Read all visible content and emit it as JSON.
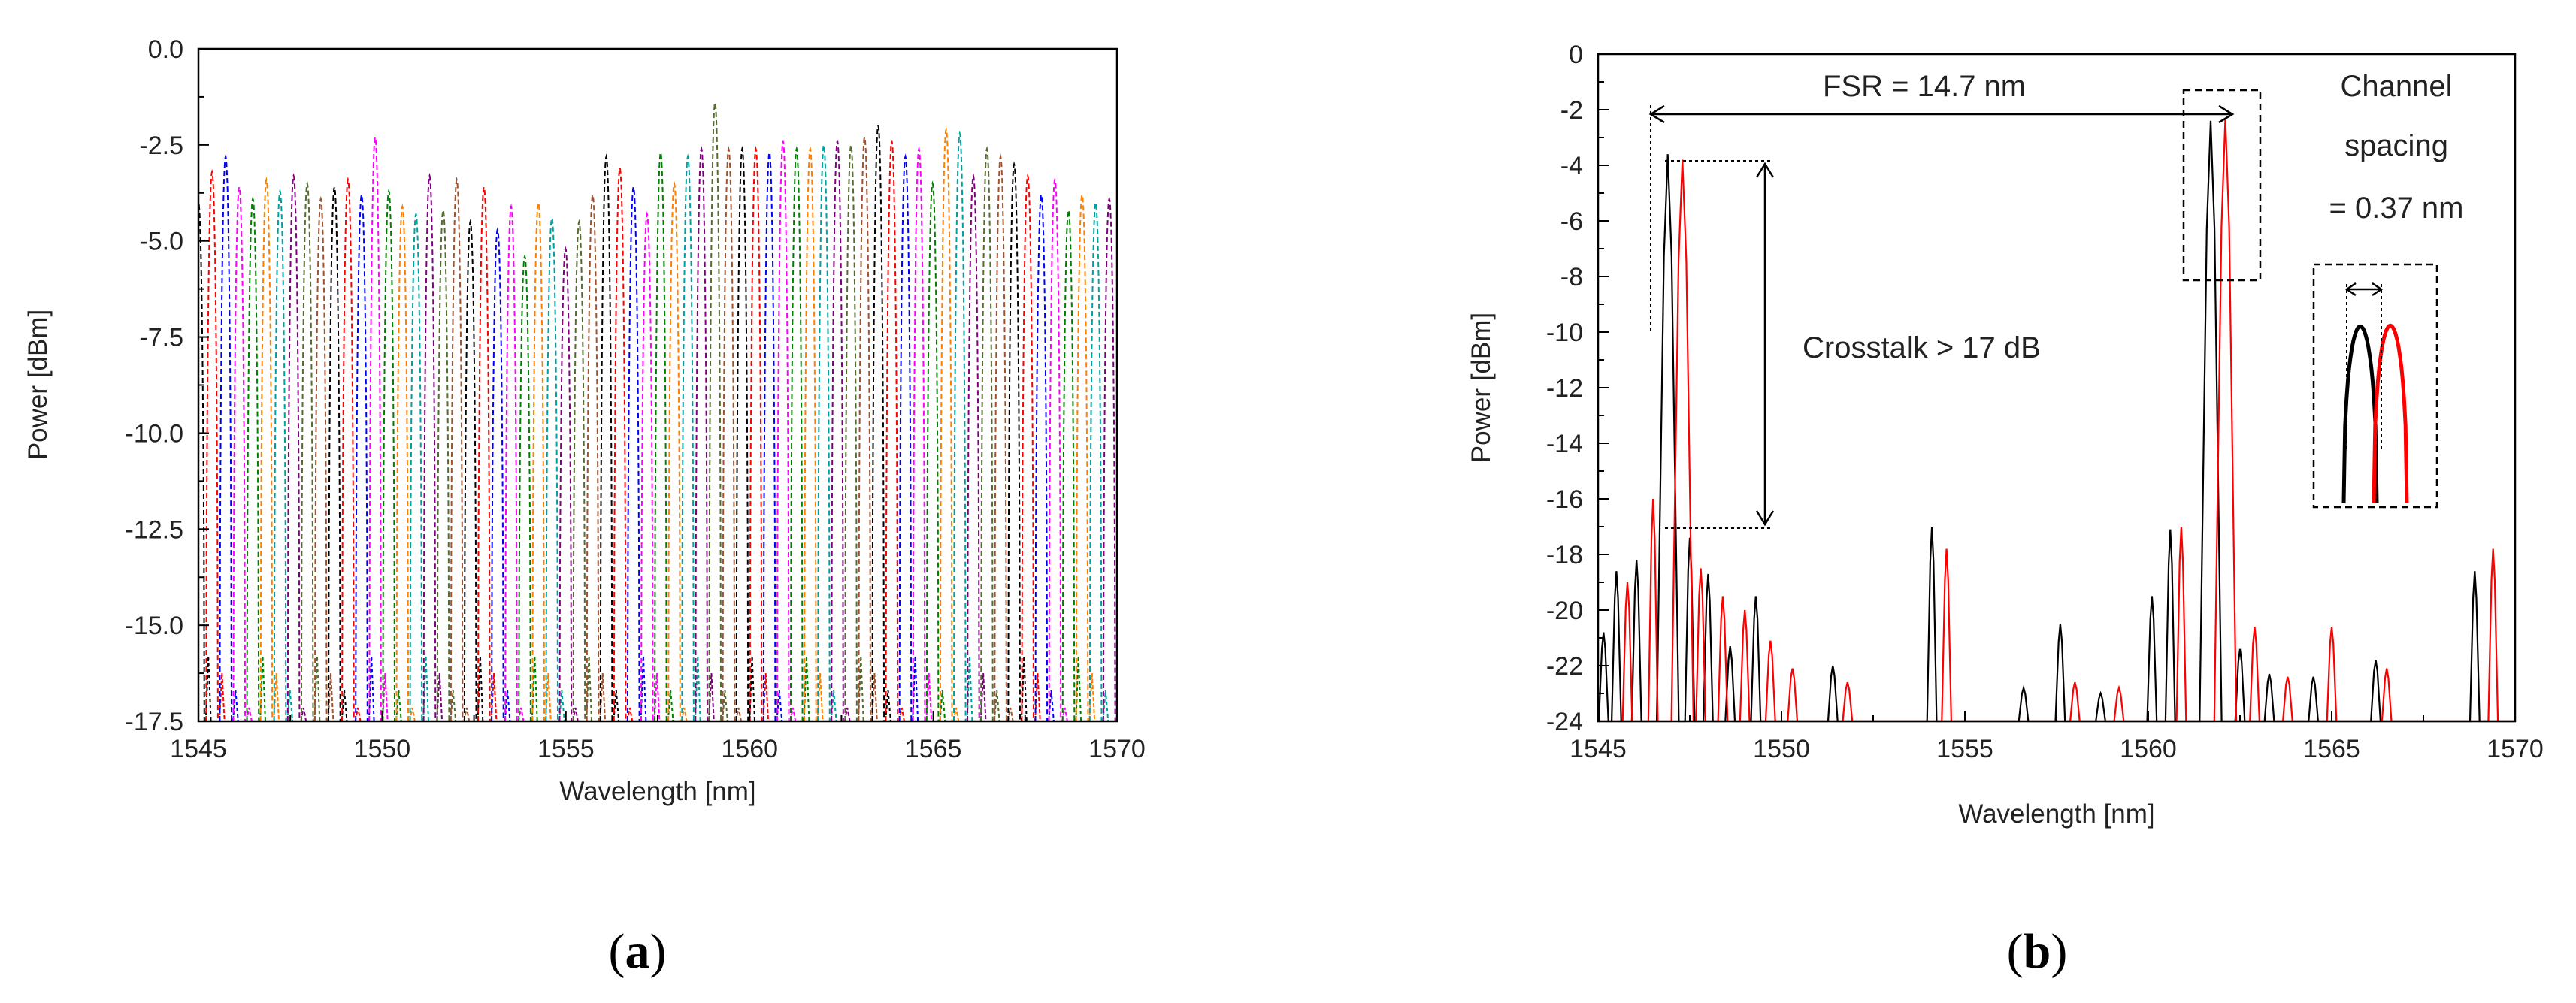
{
  "figure": {
    "panel_labels": [
      "a",
      "b"
    ]
  },
  "chart_data": [
    {
      "type": "line",
      "panel": "a",
      "title": "",
      "xlabel": "Wavelength [nm]",
      "ylabel": "Power [dBm]",
      "xlim": [
        1545,
        1570
      ],
      "ylim": [
        -17.5,
        0
      ],
      "x_ticks": [
        1545,
        1550,
        1555,
        1560,
        1565,
        1570
      ],
      "y_ticks": [
        0.0,
        -2.5,
        -5.0,
        -7.5,
        -10.0,
        -12.5,
        -15.0,
        -17.5
      ],
      "x_tick_labels": [
        "1545",
        "1550",
        "1555",
        "1560",
        "1565",
        "1570"
      ],
      "y_tick_labels": [
        "0.0",
        "-2.5",
        "-5.0",
        "-7.5",
        "-10.0",
        "-12.5",
        "-15.0",
        "-17.5"
      ],
      "grid": false,
      "line_style": "dashed",
      "colors": [
        "#000000",
        "#ff0000",
        "#0000ff",
        "#ff00ff",
        "#008000",
        "#ff8000",
        "#00a0a0",
        "#800080",
        "#556b2f",
        "#a0522d"
      ],
      "peak_wavelengths": [
        1545.0,
        1545.37,
        1545.74,
        1546.11,
        1546.48,
        1546.85,
        1547.22,
        1547.59,
        1547.96,
        1548.33,
        1548.7,
        1549.07,
        1549.44,
        1549.81,
        1550.18,
        1550.55,
        1550.92,
        1551.29,
        1551.66,
        1552.03,
        1552.4,
        1552.77,
        1553.14,
        1553.51,
        1553.88,
        1554.25,
        1554.62,
        1554.99,
        1555.36,
        1555.73,
        1556.1,
        1556.47,
        1556.84,
        1557.21,
        1557.58,
        1557.95,
        1558.32,
        1558.69,
        1559.06,
        1559.43,
        1559.8,
        1560.17,
        1560.54,
        1560.91,
        1561.28,
        1561.65,
        1562.02,
        1562.39,
        1562.76,
        1563.13,
        1563.5,
        1563.87,
        1564.24,
        1564.61,
        1564.98,
        1565.35,
        1565.72,
        1566.09,
        1566.46,
        1566.83,
        1567.2,
        1567.57,
        1567.94,
        1568.31,
        1568.68,
        1569.05,
        1569.42,
        1569.79
      ],
      "peak_powers": [
        -4.0,
        -3.2,
        -2.8,
        -3.6,
        -3.9,
        -3.4,
        -3.7,
        -3.3,
        -3.5,
        -3.9,
        -3.6,
        -3.4,
        -3.8,
        -2.3,
        -3.7,
        -4.1,
        -4.3,
        -3.3,
        -4.2,
        -3.4,
        -4.5,
        -3.6,
        -4.7,
        -4.1,
        -5.4,
        -4.0,
        -4.4,
        -5.2,
        -4.5,
        -3.8,
        -2.8,
        -3.1,
        -3.6,
        -4.3,
        -2.7,
        -3.5,
        -2.8,
        -2.6,
        -1.4,
        -2.6,
        -2.6,
        -2.6,
        -2.7,
        -2.4,
        -2.6,
        -2.6,
        -2.5,
        -2.4,
        -2.5,
        -2.3,
        -2.0,
        -2.4,
        -2.8,
        -2.6,
        -3.5,
        -2.1,
        -2.2,
        -3.3,
        -2.6,
        -2.8,
        -3.0,
        -3.3,
        -3.8,
        -3.4,
        -4.2,
        -3.8,
        -4.0,
        -3.9
      ]
    },
    {
      "type": "line",
      "panel": "b",
      "title": "",
      "xlabel": "Wavelength [nm]",
      "ylabel": "Power [dBm]",
      "xlim": [
        1545,
        1570
      ],
      "ylim": [
        -24,
        0
      ],
      "x_ticks": [
        1545,
        1550,
        1555,
        1560,
        1565,
        1570
      ],
      "y_ticks": [
        0,
        -2,
        -4,
        -6,
        -8,
        -10,
        -12,
        -14,
        -16,
        -18,
        -20,
        -22,
        -24
      ],
      "x_tick_labels": [
        "1545",
        "1550",
        "1555",
        "1560",
        "1565",
        "1570"
      ],
      "y_tick_labels": [
        "0",
        "-2",
        "-4",
        "-6",
        "-8",
        "-10",
        "-12",
        "-14",
        "-16",
        "-18",
        "-20",
        "-22",
        "-24"
      ],
      "grid": false,
      "series": [
        {
          "color": "#000000",
          "main_peaks": [
            [
              1546.9,
              -3.6
            ],
            [
              1561.7,
              -2.4
            ]
          ],
          "side_peaks": [
            [
              1545.15,
              -20.8
            ],
            [
              1545.5,
              -18.6
            ],
            [
              1546.05,
              -18.2
            ],
            [
              1547.5,
              -17.4
            ],
            [
              1548.0,
              -18.7
            ],
            [
              1548.6,
              -21.3
            ],
            [
              1549.3,
              -19.5
            ],
            [
              1551.4,
              -22.0
            ],
            [
              1554.1,
              -17.0
            ],
            [
              1556.6,
              -22.8
            ],
            [
              1557.6,
              -20.5
            ],
            [
              1558.7,
              -23.0
            ],
            [
              1560.1,
              -19.5
            ],
            [
              1560.6,
              -17.1
            ],
            [
              1562.5,
              -21.4
            ],
            [
              1563.3,
              -22.3
            ],
            [
              1564.5,
              -22.4
            ],
            [
              1566.2,
              -21.8
            ],
            [
              1568.9,
              -18.6
            ]
          ]
        },
        {
          "color": "#ff0000",
          "main_peaks": [
            [
              1547.3,
              -3.8
            ],
            [
              1562.1,
              -2.3
            ]
          ],
          "side_peaks": [
            [
              1545.8,
              -19.0
            ],
            [
              1546.5,
              -16.0
            ],
            [
              1547.8,
              -18.5
            ],
            [
              1548.4,
              -19.5
            ],
            [
              1549.0,
              -20.0
            ],
            [
              1549.7,
              -21.1
            ],
            [
              1550.3,
              -22.1
            ],
            [
              1551.8,
              -22.6
            ],
            [
              1554.5,
              -17.8
            ],
            [
              1558.0,
              -22.6
            ],
            [
              1559.2,
              -22.8
            ],
            [
              1560.9,
              -17.0
            ],
            [
              1562.9,
              -20.6
            ],
            [
              1563.8,
              -22.4
            ],
            [
              1565.0,
              -20.6
            ],
            [
              1566.5,
              -22.1
            ],
            [
              1569.4,
              -17.8
            ]
          ]
        }
      ],
      "annotations": {
        "fsr_label": "FSR  = 14.7 nm",
        "crosstalk_label": "Crosstalk > 17 dB",
        "channel_spacing_lines": [
          "Channel",
          "spacing",
          "= 0.37 nm"
        ]
      }
    }
  ]
}
